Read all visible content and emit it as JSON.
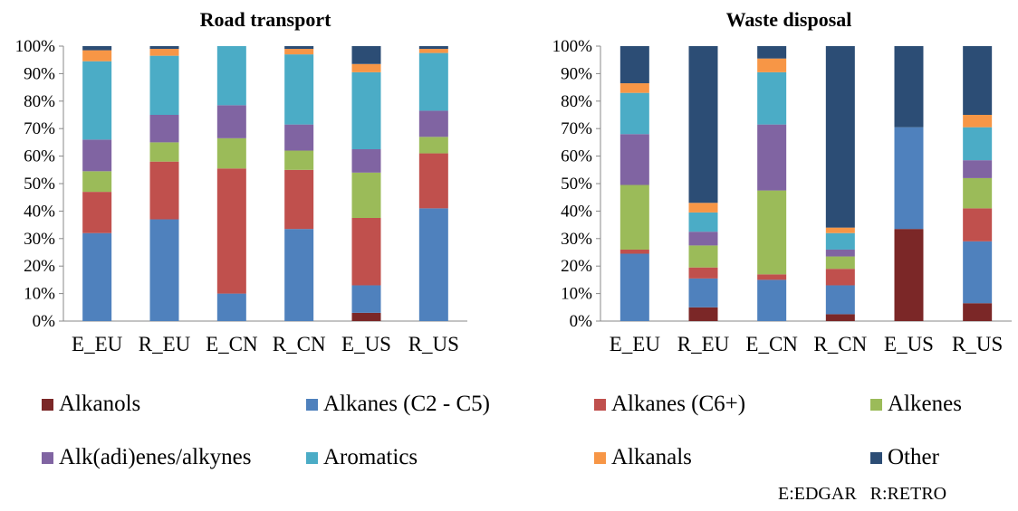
{
  "chart_data": [
    {
      "type": "bar",
      "stacked": true,
      "title": "Road transport",
      "categories": [
        "E_EU",
        "R_EU",
        "E_CN",
        "R_CN",
        "E_US",
        "R_US"
      ],
      "ylim": [
        0,
        100
      ],
      "yticks": [
        "0%",
        "10%",
        "20%",
        "30%",
        "40%",
        "50%",
        "60%",
        "70%",
        "80%",
        "90%",
        "100%"
      ],
      "grid": false,
      "series": [
        {
          "name": "Alkanols",
          "color": "#7b2727",
          "values": [
            0,
            0,
            0,
            0,
            3,
            0
          ]
        },
        {
          "name": "Alkanes (C2 - C5)",
          "color": "#4f81bd",
          "values": [
            32,
            37,
            10,
            33.5,
            10,
            41
          ]
        },
        {
          "name": "Alkanes (C6+)",
          "color": "#c0504d",
          "values": [
            15,
            21,
            45.5,
            21.5,
            24.5,
            20
          ]
        },
        {
          "name": "Alkenes",
          "color": "#9bbb59",
          "values": [
            7.5,
            7,
            11,
            7,
            16.5,
            6
          ]
        },
        {
          "name": "Alk(adi)enes/alkynes",
          "color": "#8064a2",
          "values": [
            11.5,
            10,
            12,
            9.5,
            8.5,
            9.5
          ]
        },
        {
          "name": "Aromatics",
          "color": "#4bacc6",
          "values": [
            28.5,
            21.5,
            21.5,
            25.5,
            28,
            21
          ]
        },
        {
          "name": "Alkanals",
          "color": "#f79646",
          "values": [
            4,
            2.5,
            0,
            2,
            3,
            1.5
          ]
        },
        {
          "name": "Other",
          "color": "#2c4d75",
          "values": [
            1.5,
            1,
            0,
            1,
            6.5,
            1
          ]
        }
      ]
    },
    {
      "type": "bar",
      "stacked": true,
      "title": "Waste disposal",
      "categories": [
        "E_EU",
        "R_EU",
        "E_CN",
        "R_CN",
        "E_US",
        "R_US"
      ],
      "ylim": [
        0,
        100
      ],
      "yticks": [
        "0%",
        "10%",
        "20%",
        "30%",
        "40%",
        "50%",
        "60%",
        "70%",
        "80%",
        "90%",
        "100%"
      ],
      "grid": false,
      "series": [
        {
          "name": "Alkanols",
          "color": "#7b2727",
          "values": [
            0,
            5,
            0,
            2.5,
            33.5,
            6.5
          ]
        },
        {
          "name": "Alkanes (C2 - C5)",
          "color": "#4f81bd",
          "values": [
            24.5,
            10.5,
            15,
            10.5,
            37,
            22.5
          ]
        },
        {
          "name": "Alkanes (C6+)",
          "color": "#c0504d",
          "values": [
            1.5,
            4,
            2,
            6,
            0,
            12
          ]
        },
        {
          "name": "Alkenes",
          "color": "#9bbb59",
          "values": [
            23.5,
            8,
            30.5,
            4.5,
            0,
            11
          ]
        },
        {
          "name": "Alk(adi)enes/alkynes",
          "color": "#8064a2",
          "values": [
            18.5,
            5,
            24,
            2.5,
            0,
            6.5
          ]
        },
        {
          "name": "Aromatics",
          "color": "#4bacc6",
          "values": [
            15,
            7,
            19,
            6,
            0,
            12
          ]
        },
        {
          "name": "Alkanals",
          "color": "#f79646",
          "values": [
            3.5,
            3.5,
            5,
            2,
            0,
            4.5
          ]
        },
        {
          "name": "Other",
          "color": "#2c4d75",
          "values": [
            13.5,
            57,
            4.5,
            66,
            29.5,
            25
          ]
        }
      ]
    }
  ],
  "legend": [
    {
      "label": "Alkanols",
      "color": "#7b2727"
    },
    {
      "label": "Alkanes (C2 - C5)",
      "color": "#4f81bd"
    },
    {
      "label": "Alkanes (C6+)",
      "color": "#c0504d"
    },
    {
      "label": "Alkenes",
      "color": "#9bbb59"
    },
    {
      "label": "Alk(adi)enes/alkynes",
      "color": "#8064a2"
    },
    {
      "label": "Aromatics",
      "color": "#4bacc6"
    },
    {
      "label": "Alkanals",
      "color": "#f79646"
    },
    {
      "label": "Other",
      "color": "#2c4d75"
    }
  ],
  "note": "E:EDGAR   R:RETRO"
}
